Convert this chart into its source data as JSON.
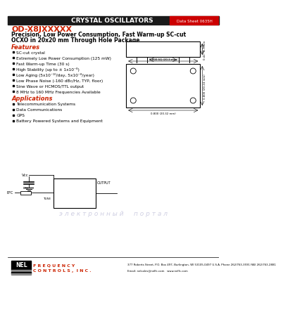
{
  "header_bg": "#1a1a1a",
  "header_text": "CRYSTAL OSCILLATORS",
  "datasheet_label": "Data Sheet 0635H",
  "datasheet_label_bg": "#cc0000",
  "title_line1": "OD-X8JXXXXX",
  "title_line2": "Precision, Low Power Consumption, Fast Warm-up SC-cut",
  "title_line3": "OCXO in 20x20 mm Through Hole Package",
  "features_title": "Features",
  "features": [
    "SC-cut crystal",
    "Extremely Low Power Consumption (125 mW)",
    "Fast Warm-up Time (30 s)",
    "High Stability (up to ± 1x10⁻⁸)",
    "Low Aging (5x10⁻¹⁰/day, 5x10⁻⁸/year)",
    "Low Phase Noise (-160 dBc/Hz, TYP, floor)",
    "Sine Wave or HCMOS/TTL output",
    "8 MHz to 160 MHz Frequencies Available"
  ],
  "applications_title": "Applications",
  "applications": [
    "Telecommunication Systems",
    "Data Communications",
    "GPS",
    "Battery Powered Systems and Equipment"
  ],
  "nel_text": "NEL",
  "nel_sub1": "F R E Q U E N C Y",
  "nel_sub2": "C O N T R O L S ,  I N C .",
  "footer_address": "377 Roberts Street, P.O. Box 497, Burlington, WI 53105-0497 U.S.A. Phone 262/763-3591 FAX 262/763-2881",
  "footer_email": "Email: nelsales@nelfc.com   www.nelfc.com",
  "watermark_text": "э л е к т р о н н ы й     п о р т а л",
  "watermark_color": "#b0b0d0",
  "bg_color": "#ffffff",
  "text_color": "#000000",
  "red_color": "#cc2200"
}
